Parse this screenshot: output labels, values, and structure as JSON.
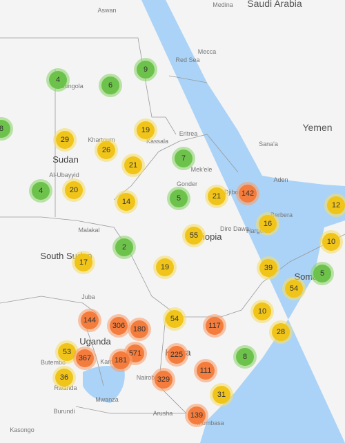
{
  "map": {
    "places": [
      "Aswan",
      "Medina",
      "Saudi Arabia",
      "Mecca",
      "Red Sea",
      "Dongola",
      "Sudan",
      "Khartoum",
      "Kassala",
      "Eritrea",
      "Sana'a",
      "Yemen",
      "Mek'ele",
      "Gonder",
      "Al-Ubayyid",
      "Aden",
      "Djibouti",
      "Berbera",
      "Hargeisa",
      "Dire Dawa",
      "Ethiopia",
      "Malakal",
      "South Sudan",
      "Somalia",
      "Juba",
      "Uganda",
      "Kampala",
      "Butembo",
      "Rwanda",
      "Kenya",
      "Nairobi",
      "Mwanza",
      "Burundi",
      "Kasongo",
      "Arusha",
      "Mombasa"
    ],
    "clusters": [
      4,
      6,
      9,
      8,
      29,
      19,
      26,
      21,
      7,
      4,
      20,
      14,
      5,
      21,
      142,
      12,
      16,
      55,
      10,
      2,
      17,
      19,
      39,
      5,
      54,
      10,
      144,
      306,
      180,
      54,
      117,
      28,
      53,
      367,
      571,
      181,
      225,
      8,
      111,
      36,
      329,
      31,
      139
    ]
  }
}
